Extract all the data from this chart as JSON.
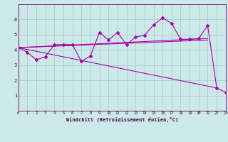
{
  "background_color": "#cce8e8",
  "grid_color": "#aacccc",
  "line_color": "#aa00aa",
  "marker": "D",
  "marker_size": 2,
  "xlabel": "Windchill (Refroidissement éolien,°C)",
  "xlim": [
    0,
    23
  ],
  "ylim": [
    0,
    7
  ],
  "xticks": [
    0,
    1,
    2,
    3,
    4,
    5,
    6,
    7,
    8,
    9,
    10,
    11,
    12,
    13,
    14,
    15,
    16,
    17,
    18,
    19,
    20,
    21,
    22,
    23
  ],
  "yticks": [
    1,
    2,
    3,
    4,
    5,
    6
  ],
  "lines": [
    {
      "x": [
        0,
        1,
        2,
        3,
        4,
        5,
        6,
        7,
        8,
        9,
        10,
        11,
        12,
        13,
        14,
        15,
        16,
        17,
        18,
        19,
        20,
        21,
        22,
        23
      ],
      "y": [
        4.15,
        3.85,
        3.35,
        3.55,
        4.35,
        4.35,
        4.35,
        3.25,
        3.6,
        5.15,
        4.65,
        5.15,
        4.35,
        4.85,
        4.95,
        5.65,
        6.1,
        5.75,
        4.7,
        4.7,
        4.75,
        5.6,
        1.5,
        1.2
      ],
      "markers": true
    },
    {
      "x": [
        0,
        21
      ],
      "y": [
        4.15,
        4.75
      ],
      "markers": false
    },
    {
      "x": [
        0,
        21
      ],
      "y": [
        4.15,
        4.65
      ],
      "markers": false
    },
    {
      "x": [
        0,
        22
      ],
      "y": [
        4.15,
        1.5
      ],
      "markers": false
    }
  ]
}
